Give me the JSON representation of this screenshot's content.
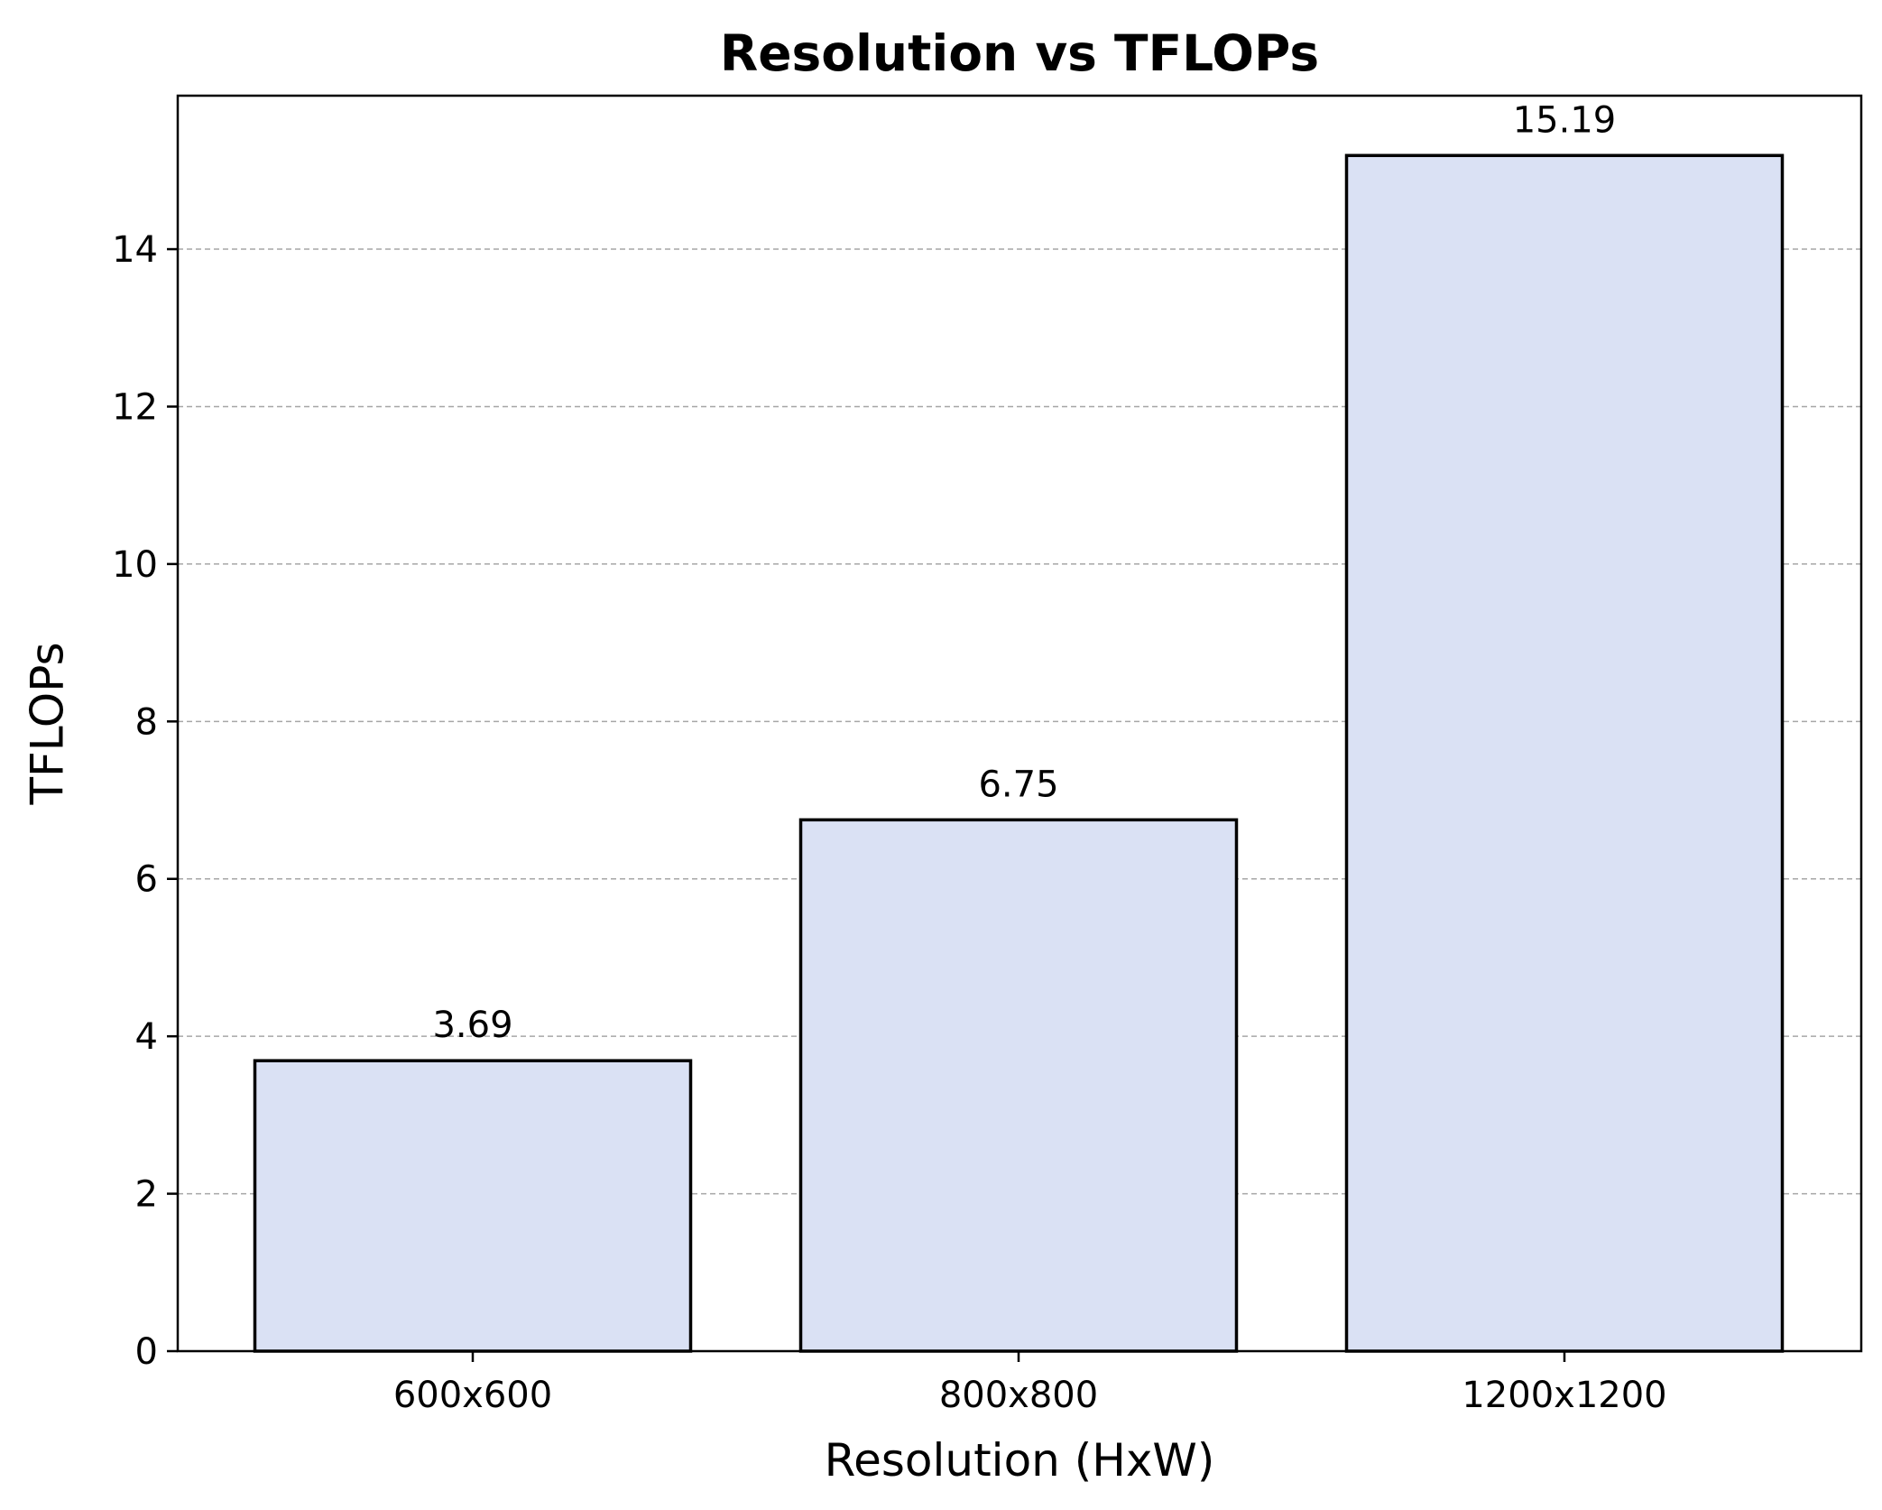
{
  "chart_data": {
    "type": "bar",
    "title": "Resolution vs TFLOPs",
    "xlabel": "Resolution (HxW)",
    "ylabel": "TFLOPs",
    "categories": [
      "600x600",
      "800x800",
      "1200x1200"
    ],
    "values": [
      3.69,
      6.75,
      15.19
    ],
    "data_labels": [
      "3.69",
      "6.75",
      "15.19"
    ],
    "ylim": [
      0,
      15.95
    ],
    "yticks": [
      0,
      2,
      4,
      6,
      8,
      10,
      12,
      14
    ],
    "ytick_labels": [
      "0",
      "2",
      "4",
      "6",
      "8",
      "10",
      "12",
      "14"
    ],
    "grid": "y-dashed",
    "legend": "none",
    "colors": {
      "bar_fill": "#dae1f4",
      "bar_edge": "#000000",
      "grid": "#a6a6a6"
    }
  }
}
